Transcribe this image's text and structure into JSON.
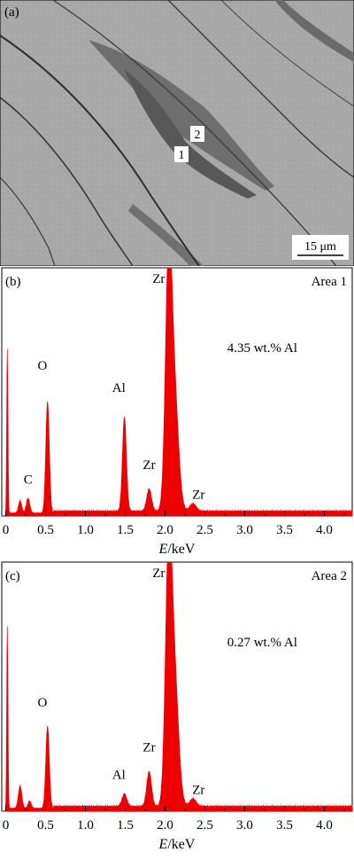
{
  "panel_a": {
    "label": "(a)",
    "markers": [
      "1",
      "2"
    ],
    "scale_bar": "15 μm"
  },
  "colors": {
    "spectrum": "#ee0000",
    "background_sem": "#a9a9a9"
  },
  "chart_data": [
    {
      "type": "area",
      "panel_label": "(b)",
      "area_label": "Area 1",
      "annotation": "4.35 wt.% Al",
      "xlabel_italic": "E",
      "xlabel_rest": "/keV",
      "xlim": [
        -0.05,
        4.35
      ],
      "ylim": [
        0,
        100
      ],
      "xticks": [
        "0",
        "0.5",
        "1.0",
        "1.5",
        "2.0",
        "2.5",
        "3.0",
        "3.5",
        "4.0"
      ],
      "peaks": [
        {
          "x": 0.02,
          "h": 66,
          "w": 0.008
        },
        {
          "x": 0.18,
          "h": 5,
          "w": 0.02
        },
        {
          "x": 0.28,
          "h": 6,
          "w": 0.022
        },
        {
          "x": 0.525,
          "h": 45,
          "w": 0.022
        },
        {
          "x": 1.49,
          "h": 38,
          "w": 0.025
        },
        {
          "x": 1.8,
          "h": 9,
          "w": 0.03
        },
        {
          "x": 2.045,
          "h": 100,
          "w": 0.04
        },
        {
          "x": 2.12,
          "h": 45,
          "w": 0.05
        },
        {
          "x": 2.35,
          "h": 3,
          "w": 0.04
        }
      ],
      "baseline": 2,
      "element_labels": [
        {
          "text": "Zr",
          "x": 1.92,
          "y": 94
        },
        {
          "text": "O",
          "x": 0.46,
          "y": 59
        },
        {
          "text": "Al",
          "x": 1.42,
          "y": 50
        },
        {
          "text": "Zr",
          "x": 1.8,
          "y": 19
        },
        {
          "text": "C",
          "x": 0.28,
          "y": 13
        },
        {
          "text": "Zr",
          "x": 2.42,
          "y": 7
        }
      ]
    },
    {
      "type": "area",
      "panel_label": "(c)",
      "area_label": "Area 2",
      "annotation": "0.27 wt.% Al",
      "xlabel_italic": "E",
      "xlabel_rest": "/keV",
      "xlim": [
        -0.05,
        4.35
      ],
      "ylim": [
        0,
        100
      ],
      "xticks": [
        "0",
        "0.5",
        "1.0",
        "1.5",
        "2.0",
        "2.5",
        "3.0",
        "3.5",
        "4.0"
      ],
      "peaks": [
        {
          "x": 0.02,
          "h": 73,
          "w": 0.008
        },
        {
          "x": 0.18,
          "h": 9,
          "w": 0.022
        },
        {
          "x": 0.3,
          "h": 3,
          "w": 0.02
        },
        {
          "x": 0.525,
          "h": 33,
          "w": 0.022
        },
        {
          "x": 1.49,
          "h": 5,
          "w": 0.03
        },
        {
          "x": 1.8,
          "h": 14,
          "w": 0.03
        },
        {
          "x": 2.045,
          "h": 100,
          "w": 0.04
        },
        {
          "x": 2.12,
          "h": 50,
          "w": 0.05
        },
        {
          "x": 2.35,
          "h": 3,
          "w": 0.04
        }
      ],
      "baseline": 2,
      "element_labels": [
        {
          "text": "Zr",
          "x": 1.92,
          "y": 94
        },
        {
          "text": "O",
          "x": 0.46,
          "y": 42
        },
        {
          "text": "Zr",
          "x": 1.8,
          "y": 24
        },
        {
          "text": "Al",
          "x": 1.42,
          "y": 13
        },
        {
          "text": "Zr",
          "x": 2.42,
          "y": 7
        }
      ]
    }
  ]
}
